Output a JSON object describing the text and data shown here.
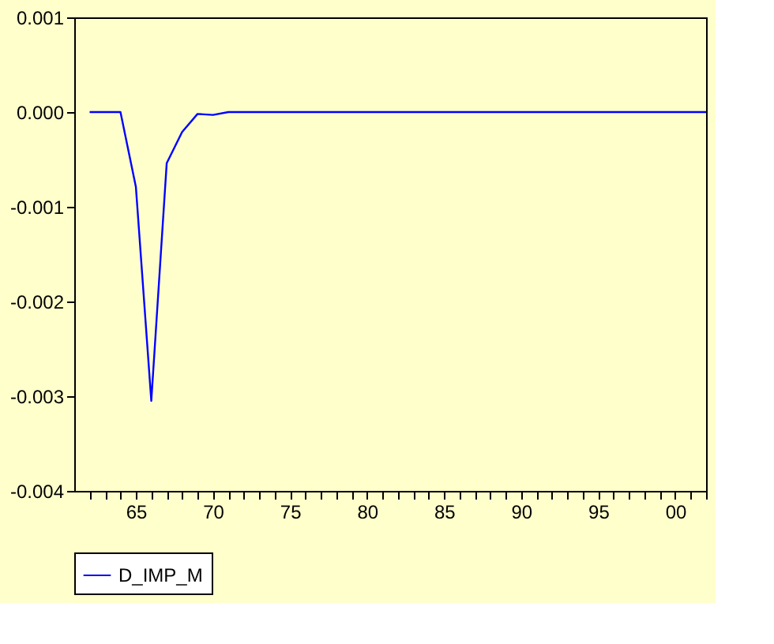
{
  "chart_data": {
    "type": "line",
    "x": [
      1962,
      1963,
      1964,
      1965,
      1966,
      1967,
      1968,
      1969,
      1970,
      1971,
      1972,
      1973,
      1974,
      1975,
      1976,
      1977,
      1978,
      1979,
      1980,
      1981,
      1982,
      1983,
      1984,
      1985,
      1986,
      1987,
      1988,
      1989,
      1990,
      1991,
      1992,
      1993,
      1994,
      1995,
      1996,
      1997,
      1998,
      1999,
      2000,
      2001,
      2002
    ],
    "series": [
      {
        "name": "D_IMP_M",
        "color": "#0000ff",
        "values": [
          0,
          0,
          0,
          -0.00079,
          -0.00305,
          -0.00054,
          -0.00021,
          -2e-05,
          -3e-05,
          0,
          0,
          0,
          0,
          0,
          0,
          0,
          0,
          0,
          0,
          0,
          0,
          0,
          0,
          0,
          0,
          0,
          0,
          0,
          0,
          0,
          0,
          0,
          0,
          0,
          0,
          0,
          0,
          0,
          0,
          0,
          0
        ]
      }
    ],
    "xlim": [
      1961,
      2002
    ],
    "xticks": [
      {
        "value": 1962,
        "label": null
      },
      {
        "value": 1963,
        "label": null
      },
      {
        "value": 1964,
        "label": null
      },
      {
        "value": 1965,
        "label": "65"
      },
      {
        "value": 1966,
        "label": null
      },
      {
        "value": 1967,
        "label": null
      },
      {
        "value": 1968,
        "label": null
      },
      {
        "value": 1969,
        "label": null
      },
      {
        "value": 1970,
        "label": "70"
      },
      {
        "value": 1971,
        "label": null
      },
      {
        "value": 1972,
        "label": null
      },
      {
        "value": 1973,
        "label": null
      },
      {
        "value": 1974,
        "label": null
      },
      {
        "value": 1975,
        "label": "75"
      },
      {
        "value": 1976,
        "label": null
      },
      {
        "value": 1977,
        "label": null
      },
      {
        "value": 1978,
        "label": null
      },
      {
        "value": 1979,
        "label": null
      },
      {
        "value": 1980,
        "label": "80"
      },
      {
        "value": 1981,
        "label": null
      },
      {
        "value": 1982,
        "label": null
      },
      {
        "value": 1983,
        "label": null
      },
      {
        "value": 1984,
        "label": null
      },
      {
        "value": 1985,
        "label": "85"
      },
      {
        "value": 1986,
        "label": null
      },
      {
        "value": 1987,
        "label": null
      },
      {
        "value": 1988,
        "label": null
      },
      {
        "value": 1989,
        "label": null
      },
      {
        "value": 1990,
        "label": "90"
      },
      {
        "value": 1991,
        "label": null
      },
      {
        "value": 1992,
        "label": null
      },
      {
        "value": 1993,
        "label": null
      },
      {
        "value": 1994,
        "label": null
      },
      {
        "value": 1995,
        "label": "95"
      },
      {
        "value": 1996,
        "label": null
      },
      {
        "value": 1997,
        "label": null
      },
      {
        "value": 1998,
        "label": null
      },
      {
        "value": 1999,
        "label": null
      },
      {
        "value": 2000,
        "label": "00"
      },
      {
        "value": 2001,
        "label": null
      },
      {
        "value": 2002,
        "label": null
      }
    ],
    "ylim": [
      -0.004,
      0.001
    ],
    "yticks": [
      {
        "value": 0.001,
        "label": "0.001"
      },
      {
        "value": 0.0,
        "label": "0.000"
      },
      {
        "value": -0.001,
        "label": "-0.001"
      },
      {
        "value": -0.002,
        "label": "-0.002"
      },
      {
        "value": -0.003,
        "label": "-0.003"
      },
      {
        "value": -0.004,
        "label": "-0.004"
      }
    ],
    "grid": false,
    "legend": "bottom",
    "marker": "none",
    "line_style": "solid"
  }
}
